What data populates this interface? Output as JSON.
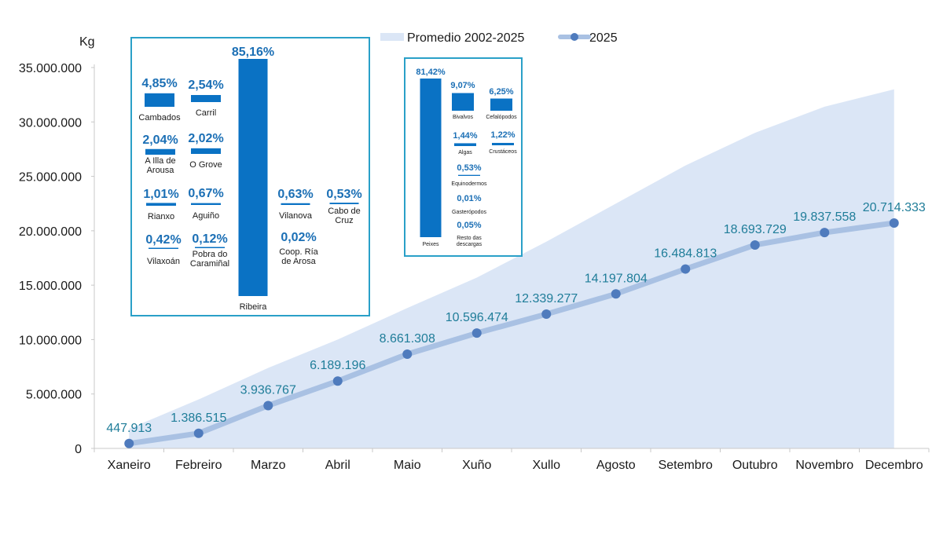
{
  "colors": {
    "area": "#dbe6f6",
    "line": "#a9c1e3",
    "marker": "#4f7bbd",
    "label": "#1f7d99",
    "bar": "#0a72c4",
    "pct": "#1b6fb5",
    "frame": "#2aa0c8"
  },
  "chart_data": [
    {
      "type": "line",
      "title": "",
      "ylabel": "Kg",
      "xlabel": "",
      "ylim": [
        0,
        35000000
      ],
      "yticks": [
        0,
        5000000,
        10000000,
        15000000,
        20000000,
        25000000,
        30000000,
        35000000
      ],
      "ytick_labels": [
        "0",
        "5.000.000",
        "10.000.000",
        "15.000.000",
        "20.000.000",
        "25.000.000",
        "30.000.000",
        "35.000.000"
      ],
      "categories": [
        "Xaneiro",
        "Febreiro",
        "Marzo",
        "Abril",
        "Maio",
        "Xuño",
        "Xullo",
        "Agosto",
        "Setembro",
        "Outubro",
        "Novembro",
        "Decembro"
      ],
      "legend": [
        "Promedio 2002-2025",
        "2025"
      ],
      "series": [
        {
          "name": "Promedio 2002-2025",
          "kind": "area",
          "values": [
            1800000,
            4500000,
            7400000,
            10000000,
            12900000,
            15700000,
            19000000,
            22500000,
            26000000,
            29000000,
            31400000,
            33000000
          ]
        },
        {
          "name": "2025",
          "kind": "line",
          "values": [
            447913,
            1386515,
            3936767,
            6189196,
            8661308,
            10596474,
            12339277,
            14197804,
            16484813,
            18693729,
            19837558,
            20714333
          ],
          "labels": [
            "447.913",
            "1.386.515",
            "3.936.767",
            "6.189.196",
            "8.661.308",
            "10.596.474",
            "12.339.277",
            "14.197.804",
            "16.484.813",
            "18.693.729",
            "19.837.558",
            "20.714.333"
          ]
        }
      ]
    },
    {
      "type": "bar",
      "title": "",
      "ylim": [
        0,
        85.16
      ],
      "categories": [
        "Cambados",
        "Carril",
        "A Illa de Arousa",
        "O Grove",
        "Rianxo",
        "Aguiño",
        "Vilaxoán",
        "Pobra do Caramiñal",
        "Ribeira",
        "Vilanova",
        "Cabo de Cruz",
        "Coop. Ría de Arosa"
      ],
      "values": [
        4.85,
        2.54,
        2.04,
        2.02,
        1.01,
        0.67,
        0.42,
        0.12,
        85.16,
        0.63,
        0.53,
        0.02
      ],
      "labels": [
        "4,85%",
        "2,54%",
        "2,04%",
        "2,02%",
        "1,01%",
        "0,67%",
        "0,42%",
        "0,12%",
        "85,16%",
        "0,63%",
        "0,53%",
        "0,02%"
      ]
    },
    {
      "type": "bar",
      "title": "",
      "ylim": [
        0,
        81.42
      ],
      "categories": [
        "Peixes",
        "Bivalvos",
        "Cefalópodos",
        "Algas",
        "Crustáceos",
        "Equinodermos",
        "Gasterópodos",
        "Resto das descargas"
      ],
      "values": [
        81.42,
        9.07,
        6.25,
        1.44,
        1.22,
        0.53,
        0.01,
        0.05
      ],
      "labels": [
        "81,42%",
        "9,07%",
        "6,25%",
        "1,44%",
        "1,22%",
        "0,53%",
        "0,01%",
        "0,05%"
      ]
    }
  ]
}
